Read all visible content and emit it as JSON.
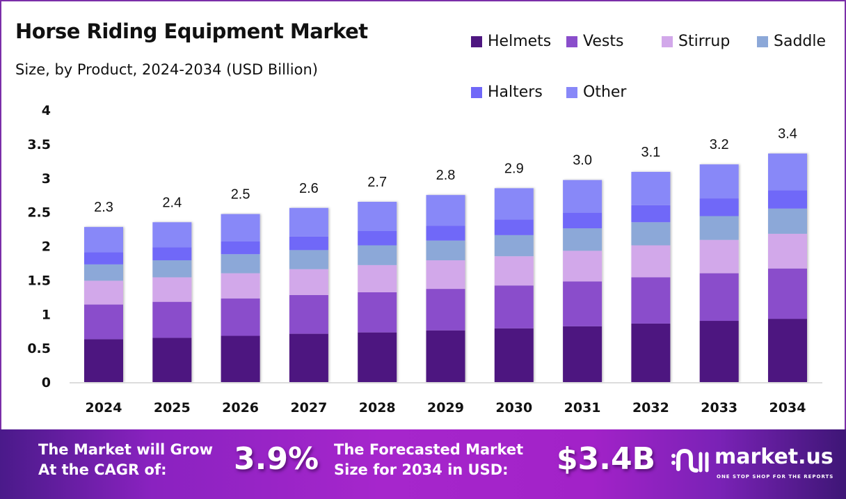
{
  "chart_data": {
    "type": "bar",
    "stacked": true,
    "title": "Horse Riding Equipment Market",
    "subtitle": "Size, by Product, 2024-2034 (USD Billion)",
    "xlabel": "",
    "ylabel": "",
    "ylim": [
      0,
      4
    ],
    "yticks": [
      "0",
      "0.5",
      "1",
      "1.5",
      "2",
      "2.5",
      "3",
      "3.5",
      "4"
    ],
    "ytick_values": [
      0,
      0.5,
      1,
      1.5,
      2,
      2.5,
      3,
      3.5,
      4
    ],
    "grid": false,
    "legend_position": "top-right",
    "categories": [
      "2024",
      "2025",
      "2026",
      "2027",
      "2028",
      "2029",
      "2030",
      "2031",
      "2032",
      "2033",
      "2034"
    ],
    "totals_labels": [
      "2.3",
      "2.4",
      "2.5",
      "2.6",
      "2.7",
      "2.8",
      "2.9",
      "3.0",
      "3.1",
      "3.2",
      "3.4"
    ],
    "series": [
      {
        "name": "Helmets",
        "color": "#4e1780",
        "values": [
          0.63,
          0.65,
          0.68,
          0.71,
          0.73,
          0.76,
          0.79,
          0.82,
          0.86,
          0.9,
          0.93
        ]
      },
      {
        "name": "Vests",
        "color": "#8a4ecb",
        "values": [
          0.51,
          0.53,
          0.55,
          0.57,
          0.59,
          0.61,
          0.63,
          0.66,
          0.68,
          0.7,
          0.74
        ]
      },
      {
        "name": "Stirrup",
        "color": "#d2a8ea",
        "values": [
          0.35,
          0.36,
          0.37,
          0.38,
          0.4,
          0.42,
          0.43,
          0.45,
          0.47,
          0.49,
          0.51
        ]
      },
      {
        "name": "Saddle",
        "color": "#8ca8d8",
        "values": [
          0.24,
          0.25,
          0.28,
          0.28,
          0.29,
          0.29,
          0.31,
          0.33,
          0.34,
          0.35,
          0.37
        ]
      },
      {
        "name": "Halters",
        "color": "#7068f8",
        "values": [
          0.18,
          0.19,
          0.19,
          0.2,
          0.21,
          0.22,
          0.23,
          0.23,
          0.25,
          0.26,
          0.27
        ]
      },
      {
        "name": "Other",
        "color": "#8888f8",
        "values": [
          0.37,
          0.37,
          0.4,
          0.42,
          0.43,
          0.45,
          0.46,
          0.48,
          0.49,
          0.5,
          0.54
        ]
      }
    ]
  },
  "legend": [
    {
      "label": "Helmets",
      "color": "#4e1780"
    },
    {
      "label": "Vests",
      "color": "#8a4ecb"
    },
    {
      "label": "Stirrup",
      "color": "#d2a8ea"
    },
    {
      "label": "Saddle",
      "color": "#8ca8d8"
    },
    {
      "label": "Halters",
      "color": "#7068f8"
    },
    {
      "label": "Other",
      "color": "#8888f8"
    }
  ],
  "banner": {
    "cagr_text_line1": "The Market will Grow",
    "cagr_text_line2": "At the CAGR of:",
    "cagr_value": "3.9%",
    "forecast_text_line1": "The Forecasted Market",
    "forecast_text_line2": "Size for 2034 in USD:",
    "forecast_value": "$3.4B",
    "brand_name": "market.us",
    "brand_tagline": "ONE STOP SHOP FOR THE REPORTS"
  }
}
